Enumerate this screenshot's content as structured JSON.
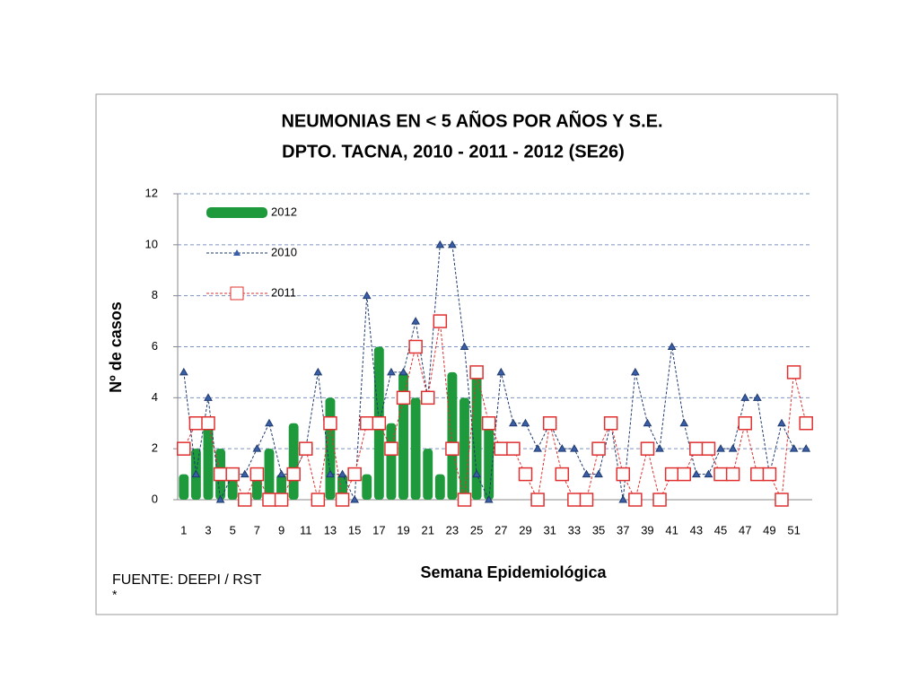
{
  "chart_data": {
    "type": "combo",
    "title": "NEUMONIAS  EN  < 5  AÑOS  POR AÑOS Y S.E.",
    "subtitle": "DPTO. TACNA, 2010 - 2011 - 2012 (SE26)",
    "y_label": "Nº de casos",
    "x_label": "Semana Epidemiológica",
    "source": "FUENTE: DEEPI / RST",
    "footnote": "*",
    "categories": [
      1,
      null,
      3,
      null,
      5,
      null,
      7,
      null,
      9,
      null,
      11,
      null,
      13,
      null,
      15,
      null,
      17,
      null,
      19,
      null,
      21,
      null,
      23,
      null,
      25,
      null,
      27,
      null,
      29,
      null,
      31,
      null,
      33,
      null,
      35,
      null,
      37,
      null,
      39,
      null,
      41,
      null,
      43,
      null,
      45,
      null,
      47,
      null,
      49,
      null,
      51,
      null
    ],
    "series": [
      {
        "name": "2012",
        "type": "bar",
        "color": "#1e9a3c",
        "values": [
          1,
          2,
          3,
          2,
          1,
          0,
          1,
          2,
          1,
          3,
          0,
          0,
          4,
          1,
          0,
          1,
          6,
          3,
          5,
          4,
          2,
          1,
          5,
          4,
          5,
          3,
          null,
          null,
          null,
          null,
          null,
          null,
          null,
          null,
          null,
          null,
          null,
          null,
          null,
          null,
          null,
          null,
          null,
          null,
          null,
          null,
          null,
          null,
          null,
          null,
          null,
          null
        ]
      },
      {
        "name": "2010",
        "type": "line",
        "marker": "triangle",
        "color": "#1f3a6e",
        "values": [
          5,
          1,
          4,
          0,
          1,
          1,
          2,
          3,
          1,
          1,
          2,
          5,
          1,
          1,
          0,
          8,
          3,
          5,
          5,
          7,
          4,
          10,
          10,
          6,
          1,
          0,
          5,
          3,
          3,
          2,
          3,
          2,
          2,
          1,
          1,
          3,
          0,
          5,
          3,
          2,
          6,
          3,
          1,
          1,
          2,
          2,
          4,
          4,
          1,
          3,
          2,
          2
        ]
      },
      {
        "name": "2011",
        "type": "line",
        "marker": "square",
        "color": "#e03030",
        "values": [
          2,
          3,
          3,
          1,
          1,
          0,
          1,
          0,
          0,
          1,
          2,
          0,
          3,
          0,
          1,
          3,
          3,
          2,
          4,
          6,
          4,
          7,
          2,
          0,
          5,
          3,
          2,
          2,
          1,
          0,
          3,
          1,
          0,
          0,
          2,
          3,
          1,
          0,
          2,
          0,
          1,
          1,
          2,
          2,
          1,
          1,
          3,
          1,
          1,
          0,
          5,
          3
        ]
      }
    ],
    "ylim": [
      0,
      12
    ],
    "yticks": [
      0,
      2,
      4,
      6,
      8,
      10,
      12
    ],
    "grid": true,
    "legend": "upper left"
  }
}
